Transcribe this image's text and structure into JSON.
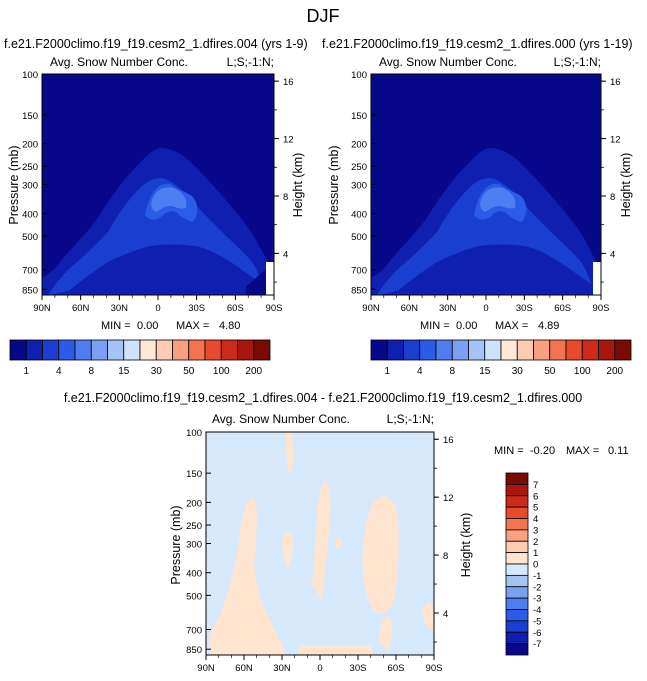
{
  "figure": {
    "title": "DJF",
    "bottom_title": "f.e21.F2000climo.f19_f19.cesm2_1.dfires.004 - f.e21.F2000climo.f19_f19.cesm2_1.dfires.000"
  },
  "colors": {
    "abs_levels": [
      "#08088a",
      "#0f1fb0",
      "#1a3fd0",
      "#2b5ce8",
      "#4f7ef0",
      "#7aa0f4",
      "#a6c3f8",
      "#d0e2fb",
      "#ffe8d8",
      "#fccbb0",
      "#f8a080",
      "#f27450",
      "#e84a2c",
      "#cf2a18",
      "#a8160c",
      "#7a0a04"
    ],
    "diff_levels": [
      "#08088a",
      "#0f1fb0",
      "#1a3fd0",
      "#2b5ce8",
      "#4f7ef0",
      "#7aa0f4",
      "#a6c3f8",
      "#d6e8fb",
      "#ffe4d0",
      "#fccbb0",
      "#f8a080",
      "#f27450",
      "#e84a2c",
      "#cf2a18",
      "#a8160c",
      "#7a0a04"
    ]
  },
  "abs_colorbar_labels": [
    "1",
    "4",
    "8",
    "15",
    "30",
    "50",
    "100",
    "200"
  ],
  "diff_colorbar_labels": [
    "7",
    "6",
    "5",
    "4",
    "3",
    "2",
    "1",
    "0",
    "-1",
    "-2",
    "-3",
    "-4",
    "-5",
    "-6",
    "-7"
  ],
  "chart_data": [
    {
      "type": "heatmap",
      "title": "f.e21.F2000climo.f19_f19.cesm2_1.dfires.004 (yrs 1-9)",
      "left_label": "Avg. Snow Number Conc.",
      "right_label": "L;S;-1:N;",
      "ylabel": "Pressure (mb)",
      "y2label": "Height (km)",
      "x_ticks": [
        "90N",
        "60N",
        "30N",
        "0",
        "30S",
        "60S",
        "90S"
      ],
      "y_ticks": [
        "100",
        "150",
        "200",
        "250",
        "300",
        "400",
        "500",
        "700",
        "850"
      ],
      "y2_ticks": [
        "16",
        "12",
        "8",
        "4"
      ],
      "min_label": "MIN =",
      "min": "0.00",
      "max_label": "MAX =",
      "max": "4.80"
    },
    {
      "type": "heatmap",
      "title": "f.e21.F2000climo.f19_f19.cesm2_1.dfires.000 (yrs 1-19)",
      "left_label": "Avg. Snow Number Conc.",
      "right_label": "L;S;-1:N;",
      "ylabel": "Pressure (mb)",
      "y2label": "Height (km)",
      "x_ticks": [
        "90N",
        "60N",
        "30N",
        "0",
        "30S",
        "60S",
        "90S"
      ],
      "y_ticks": [
        "100",
        "150",
        "200",
        "250",
        "300",
        "400",
        "500",
        "700",
        "850"
      ],
      "y2_ticks": [
        "16",
        "12",
        "8",
        "4"
      ],
      "min_label": "MIN =",
      "min": "0.00",
      "max_label": "MAX =",
      "max": "4.89"
    },
    {
      "type": "heatmap",
      "left_label": "Avg. Snow Number Conc.",
      "right_label": "L;S;-1:N;",
      "ylabel": "Pressure (mb)",
      "y2label": "Height (km)",
      "x_ticks": [
        "90N",
        "60N",
        "30N",
        "0",
        "30S",
        "60S",
        "90S"
      ],
      "y_ticks": [
        "100",
        "150",
        "200",
        "250",
        "300",
        "400",
        "500",
        "700",
        "850"
      ],
      "y2_ticks": [
        "16",
        "12",
        "8",
        "4"
      ],
      "min_label": "MIN =",
      "min": "-0.20",
      "max_label": "MAX =",
      "max": "0.11"
    }
  ]
}
